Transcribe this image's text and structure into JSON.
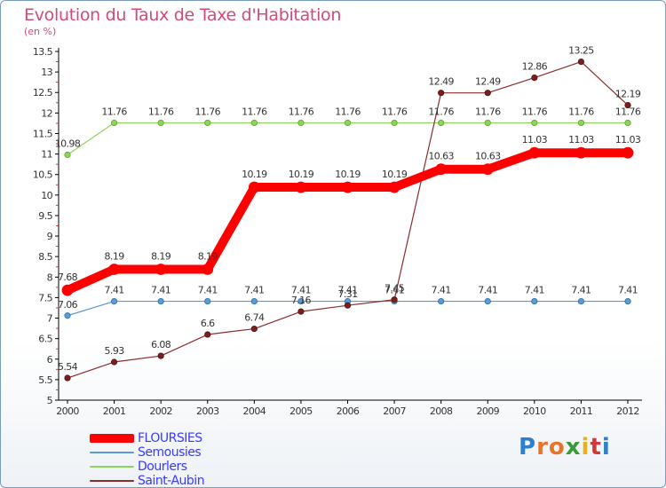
{
  "header": {
    "title": "Evolution du Taux de Taxe d'Habitation",
    "subtitle": "(en %)"
  },
  "logo": {
    "text": "Proxiti"
  },
  "chart_data": {
    "type": "line",
    "x": [
      "2000",
      "2001",
      "2002",
      "2003",
      "2004",
      "2005",
      "2006",
      "2007",
      "2008",
      "2009",
      "2010",
      "2011",
      "2012"
    ],
    "ylim": [
      5,
      13.5
    ],
    "yticks": [
      "5",
      "5.5",
      "6",
      "6.5",
      "7",
      "7.5",
      "8",
      "8.5",
      "9",
      "9.5",
      "10",
      "10.5",
      "11",
      "11.5",
      "12",
      "12.5",
      "13",
      "13.5"
    ],
    "grid": false,
    "legend_position": "bottom-left",
    "series": [
      {
        "name": "FLOURSIES",
        "color": "#ff0000",
        "values": [
          7.68,
          8.19,
          8.19,
          8.19,
          10.19,
          10.19,
          10.19,
          10.19,
          10.63,
          10.63,
          11.03,
          11.03,
          11.03
        ],
        "labels": [
          "7.68",
          "8.19",
          "8.19",
          "8.19",
          "10.19",
          "10.19",
          "10.19",
          "10.19",
          "10.63",
          "10.63",
          "11.03",
          "11.03",
          "11.03"
        ]
      },
      {
        "name": "Semousies",
        "color": "#5b9bd5",
        "values": [
          7.06,
          7.41,
          7.41,
          7.41,
          7.41,
          7.41,
          7.41,
          7.41,
          7.41,
          7.41,
          7.41,
          7.41,
          7.41
        ],
        "labels": [
          "7.06",
          "7.41",
          "7.41",
          "7.41",
          "7.41",
          "7.41",
          "7.41",
          "7.41",
          "7.41",
          "7.41",
          "7.41",
          "7.41",
          "7.41"
        ]
      },
      {
        "name": "Dourlers",
        "color": "#8fd45a",
        "values": [
          10.98,
          11.76,
          11.76,
          11.76,
          11.76,
          11.76,
          11.76,
          11.76,
          11.76,
          11.76,
          11.76,
          11.76,
          11.76
        ],
        "labels": [
          "10.98",
          "11.76",
          "11.76",
          "11.76",
          "11.76",
          "11.76",
          "11.76",
          "11.76",
          "11.76",
          "11.76",
          "11.76",
          "11.76",
          "11.76"
        ]
      },
      {
        "name": "Saint-Aubin",
        "color": "#8b2c2c",
        "values": [
          5.54,
          5.93,
          6.08,
          6.6,
          6.74,
          7.16,
          7.31,
          7.45,
          12.49,
          12.49,
          12.86,
          13.25,
          12.19
        ],
        "labels": [
          "5.54",
          "5.93",
          "6.08",
          "6.6",
          "6.74",
          "7.16",
          "7.31",
          "7.45",
          "12.49",
          "12.49",
          "12.86",
          "13.25",
          "12.19"
        ]
      }
    ]
  }
}
